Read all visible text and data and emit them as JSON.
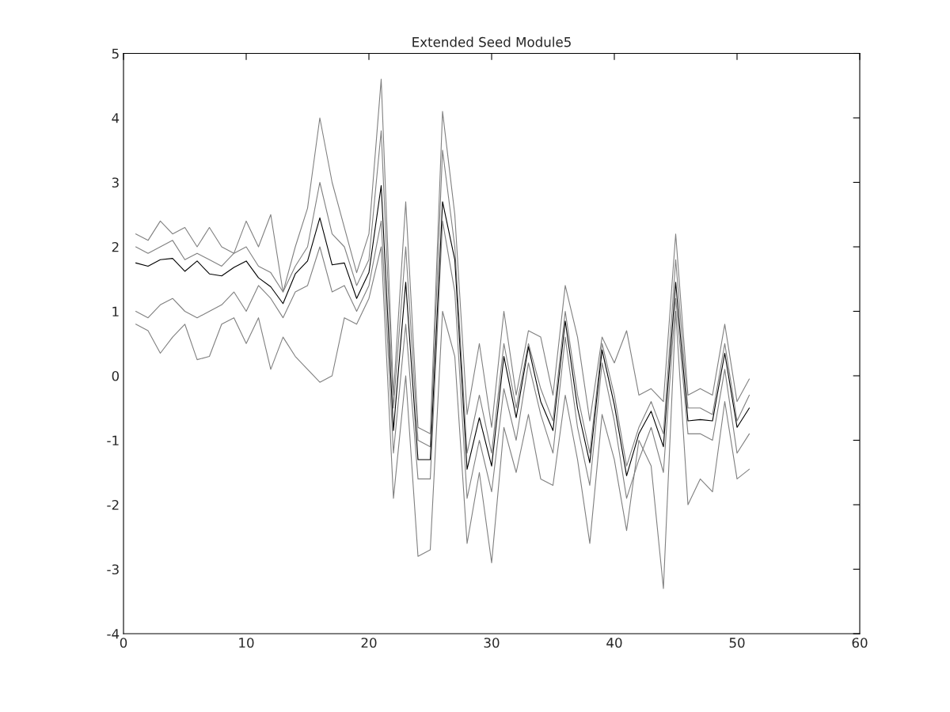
{
  "chart_data": {
    "type": "line",
    "title": "Extended Seed Module5",
    "x": [
      1,
      2,
      3,
      4,
      5,
      6,
      7,
      8,
      9,
      10,
      11,
      12,
      13,
      14,
      15,
      16,
      17,
      18,
      19,
      20,
      21,
      22,
      23,
      24,
      25,
      26,
      27,
      28,
      29,
      30,
      31,
      32,
      33,
      34,
      35,
      36,
      37,
      38,
      39,
      40,
      41,
      42,
      43,
      44,
      45,
      46,
      47,
      48,
      49,
      50,
      51
    ],
    "xlim": [
      0,
      60
    ],
    "xticks": [
      0,
      10,
      20,
      30,
      40,
      50,
      60
    ],
    "ylim": [
      -4,
      5
    ],
    "yticks": [
      -4,
      -3,
      -2,
      -1,
      0,
      1,
      2,
      3,
      4,
      5
    ],
    "grid": false,
    "marker": "none",
    "line_style": "solid",
    "series": [
      {
        "color": "#808080",
        "values": [
          2.2,
          2.1,
          2.4,
          2.2,
          2.3,
          2.0,
          2.3,
          2.0,
          1.9,
          2.4,
          2.0,
          2.5,
          1.3,
          2.0,
          2.6,
          4.0,
          3.0,
          2.3,
          1.6,
          2.2,
          4.6,
          -0.3,
          2.7,
          -0.8,
          -0.9,
          4.1,
          2.5,
          -0.6,
          0.5,
          -0.8,
          1.0,
          -0.3,
          0.7,
          0.6,
          -0.3,
          1.4,
          0.6,
          -0.7,
          0.6,
          0.2,
          0.7,
          -0.3,
          -0.2,
          -0.4,
          2.2,
          -0.3,
          -0.2,
          -0.3,
          0.8,
          -0.4,
          -0.05
        ]
      },
      {
        "color": "#808080",
        "values": [
          0.8,
          0.7,
          0.35,
          0.6,
          0.8,
          0.25,
          0.3,
          0.8,
          0.9,
          0.5,
          0.9,
          0.1,
          0.6,
          0.3,
          0.1,
          -0.1,
          0.0,
          0.9,
          0.8,
          1.2,
          2.0,
          -1.9,
          0.0,
          -2.8,
          -2.7,
          1.0,
          0.3,
          -2.6,
          -1.5,
          -2.9,
          -0.8,
          -1.5,
          -0.6,
          -1.6,
          -1.7,
          -0.3,
          -1.3,
          -2.6,
          -0.6,
          -1.3,
          -2.4,
          -1.0,
          -1.4,
          -3.3,
          1.0,
          -2.0,
          -1.6,
          -1.8,
          -0.4,
          -1.6,
          -1.45
        ]
      },
      {
        "color": "#808080",
        "values": [
          2.0,
          1.9,
          2.0,
          2.1,
          1.8,
          1.9,
          1.8,
          1.7,
          1.9,
          2.0,
          1.7,
          1.6,
          1.3,
          1.7,
          2.0,
          3.0,
          2.2,
          2.0,
          1.4,
          1.8,
          3.8,
          -0.5,
          2.0,
          -1.0,
          -1.1,
          3.5,
          2.0,
          -1.2,
          -0.3,
          -1.2,
          0.5,
          -0.5,
          0.5,
          -0.2,
          -0.7,
          1.0,
          -0.3,
          -1.2,
          0.5,
          -0.3,
          -1.4,
          -0.8,
          -0.4,
          -0.9,
          1.8,
          -0.5,
          -0.5,
          -0.6,
          0.5,
          -0.7,
          -0.3
        ]
      },
      {
        "color": "#808080",
        "values": [
          1.0,
          0.9,
          1.1,
          1.2,
          1.0,
          0.9,
          1.0,
          1.1,
          1.3,
          1.0,
          1.4,
          1.2,
          0.9,
          1.3,
          1.4,
          2.0,
          1.3,
          1.4,
          1.0,
          1.4,
          2.4,
          -1.2,
          0.8,
          -1.6,
          -1.6,
          2.4,
          1.3,
          -1.9,
          -1.0,
          -1.8,
          -0.2,
          -1.0,
          0.2,
          -0.6,
          -1.2,
          0.6,
          -0.8,
          -1.7,
          0.2,
          -0.7,
          -1.9,
          -1.3,
          -0.8,
          -1.5,
          1.2,
          -0.9,
          -0.9,
          -1.0,
          0.1,
          -1.2,
          -0.9
        ]
      },
      {
        "color": "#000000",
        "values": [
          1.75,
          1.7,
          1.8,
          1.82,
          1.62,
          1.78,
          1.58,
          1.55,
          1.68,
          1.78,
          1.52,
          1.38,
          1.12,
          1.58,
          1.78,
          2.45,
          1.72,
          1.75,
          1.2,
          1.6,
          2.95,
          -0.85,
          1.45,
          -1.3,
          -1.3,
          2.7,
          1.8,
          -1.45,
          -0.65,
          -1.4,
          0.3,
          -0.65,
          0.45,
          -0.4,
          -0.85,
          0.85,
          -0.5,
          -1.35,
          0.4,
          -0.45,
          -1.55,
          -0.9,
          -0.55,
          -1.1,
          1.45,
          -0.7,
          -0.68,
          -0.7,
          0.35,
          -0.8,
          -0.5
        ]
      }
    ]
  }
}
